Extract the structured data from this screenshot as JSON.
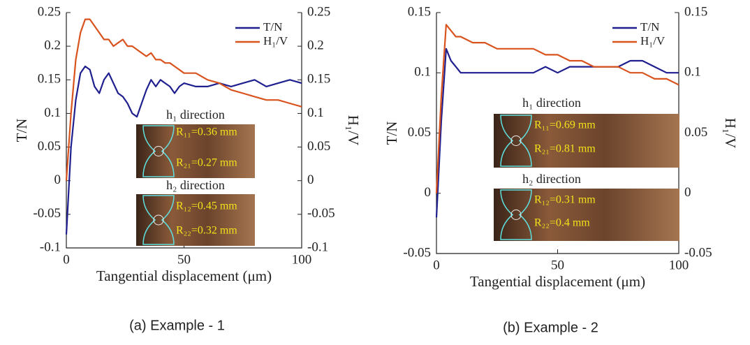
{
  "chart_data": [
    {
      "type": "line",
      "caption": "(a) Example - 1",
      "xlabel": "Tangential displacement (μm)",
      "ylabel": "T/N",
      "y2label": "H₁/V",
      "xlim": [
        0,
        100
      ],
      "xticks": [
        0,
        50,
        100
      ],
      "ylim": [
        -0.1,
        0.25
      ],
      "yticks": [
        -0.1,
        -0.05,
        0,
        0.05,
        0.1,
        0.15,
        0.2,
        0.25
      ],
      "y2lim": [
        -0.1,
        0.25
      ],
      "y2ticks": [
        -0.1,
        -0.05,
        0,
        0.05,
        0.1,
        0.15,
        0.2,
        0.25
      ],
      "legend": "upper right",
      "annotations": [
        "h₁ direction",
        "R₁₁=0.36 mm",
        "R₂₁=0.27 mm",
        "h₂ direction",
        "R₁₂=0.45 mm",
        "R₂₂=0.32 mm"
      ],
      "x": [
        0,
        2,
        4,
        6,
        8,
        10,
        12,
        14,
        16,
        18,
        20,
        22,
        24,
        26,
        28,
        30,
        32,
        34,
        36,
        38,
        40,
        42,
        44,
        46,
        48,
        50,
        55,
        60,
        65,
        70,
        75,
        80,
        85,
        90,
        95,
        100
      ],
      "series": [
        {
          "name": "T/N",
          "color": "#1f1f8f",
          "values": [
            -0.08,
            0.05,
            0.12,
            0.16,
            0.17,
            0.165,
            0.14,
            0.13,
            0.15,
            0.16,
            0.145,
            0.13,
            0.125,
            0.115,
            0.1,
            0.095,
            0.115,
            0.135,
            0.15,
            0.14,
            0.15,
            0.145,
            0.14,
            0.13,
            0.14,
            0.145,
            0.14,
            0.14,
            0.145,
            0.14,
            0.145,
            0.15,
            0.14,
            0.145,
            0.15,
            0.145
          ]
        },
        {
          "name": "H₁/V",
          "color": "#d9531e",
          "axis": "y2",
          "values": [
            0.0,
            0.1,
            0.18,
            0.22,
            0.24,
            0.24,
            0.23,
            0.22,
            0.21,
            0.21,
            0.2,
            0.205,
            0.21,
            0.2,
            0.2,
            0.195,
            0.19,
            0.185,
            0.19,
            0.18,
            0.18,
            0.175,
            0.175,
            0.17,
            0.165,
            0.16,
            0.16,
            0.15,
            0.145,
            0.135,
            0.13,
            0.125,
            0.12,
            0.12,
            0.115,
            0.11
          ]
        }
      ]
    },
    {
      "type": "line",
      "caption": "(b) Example - 2",
      "xlabel": "Tangential displacement (μm)",
      "ylabel": "T/N",
      "y2label": "H₁/V",
      "xlim": [
        0,
        100
      ],
      "xticks": [
        0,
        50,
        100
      ],
      "ylim": [
        -0.05,
        0.15
      ],
      "yticks": [
        -0.05,
        0,
        0.05,
        0.1,
        0.15
      ],
      "y2lim": [
        -0.05,
        0.15
      ],
      "y2ticks": [
        -0.05,
        0,
        0.05,
        0.1,
        0.15
      ],
      "legend": "upper right",
      "annotations": [
        "h₁ direction",
        "R₁₁=0.69 mm",
        "R₂₁=0.81 mm",
        "h₂ direction",
        "R₁₂=0.31 mm",
        "R₂₂=0.4 mm"
      ],
      "x": [
        0,
        2,
        4,
        6,
        8,
        10,
        15,
        20,
        25,
        30,
        35,
        40,
        45,
        50,
        55,
        60,
        65,
        70,
        75,
        80,
        85,
        90,
        95,
        100
      ],
      "series": [
        {
          "name": "T/N",
          "color": "#1f1f8f",
          "values": [
            -0.02,
            0.06,
            0.12,
            0.11,
            0.105,
            0.1,
            0.1,
            0.1,
            0.1,
            0.1,
            0.1,
            0.1,
            0.105,
            0.1,
            0.105,
            0.105,
            0.105,
            0.105,
            0.105,
            0.11,
            0.11,
            0.105,
            0.1,
            0.1
          ]
        },
        {
          "name": "H₁/V",
          "color": "#d9531e",
          "axis": "y2",
          "values": [
            0.0,
            0.08,
            0.14,
            0.135,
            0.13,
            0.13,
            0.125,
            0.125,
            0.12,
            0.12,
            0.12,
            0.12,
            0.115,
            0.115,
            0.11,
            0.11,
            0.105,
            0.105,
            0.105,
            0.1,
            0.1,
            0.095,
            0.095,
            0.09
          ]
        }
      ]
    }
  ]
}
